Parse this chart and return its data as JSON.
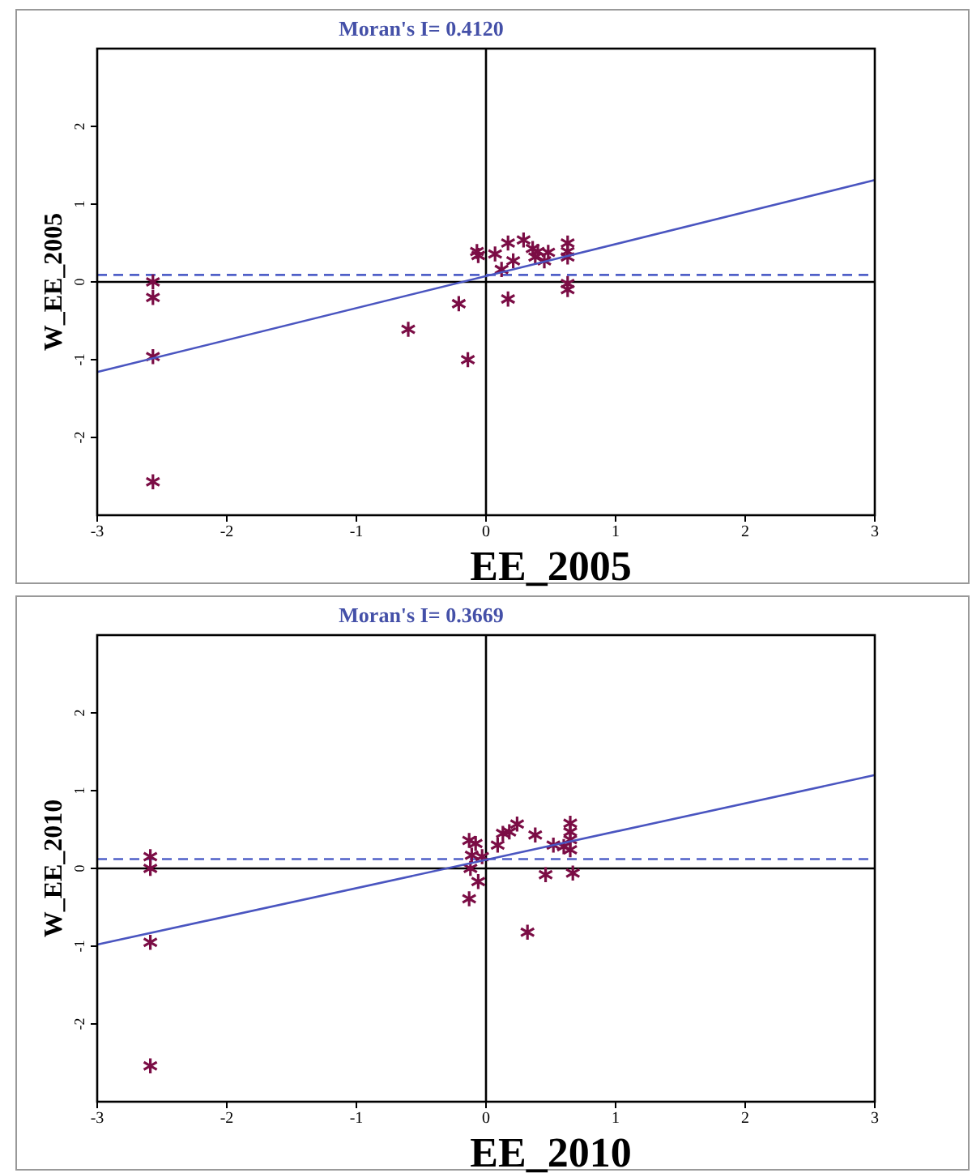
{
  "chart_data": [
    {
      "type": "scatter",
      "title": "Moran's I= 0.4120",
      "xlabel": "EE_2005",
      "ylabel": "W_EE_2005",
      "xlim": [
        -3,
        3
      ],
      "xticks": [
        -3,
        -2,
        -1,
        0,
        1,
        2,
        3
      ],
      "ylim": [
        -3,
        3
      ],
      "yticks": [
        -2,
        -1,
        0,
        1,
        2
      ],
      "grid": false,
      "ref_lines": [
        {
          "axis": "x",
          "value": 0,
          "color": "#000000",
          "line_style": "solid"
        },
        {
          "axis": "y",
          "value": 0,
          "color": "#000000",
          "line_style": "solid"
        },
        {
          "axis": "y",
          "value": 0.09,
          "color": "#5060c8",
          "line_style": "dashed"
        }
      ],
      "series": [
        {
          "marker": "cross",
          "color": "#7b0d45",
          "x": [
            -2.57,
            -2.57,
            -2.57,
            -2.57,
            -0.6,
            -0.21,
            -0.14,
            0.17,
            -0.07,
            -0.06,
            0.07,
            0.12,
            0.17,
            0.21,
            0.29,
            0.36,
            0.4,
            0.38,
            0.45,
            0.48,
            0.63,
            0.63,
            0.63,
            0.63,
            0.63
          ],
          "values": [
            0,
            -0.2,
            -0.96,
            -2.57,
            -0.61,
            -0.28,
            -1.0,
            -0.22,
            0.39,
            0.34,
            0.36,
            0.16,
            0.5,
            0.27,
            0.54,
            0.43,
            0.39,
            0.32,
            0.27,
            0.38,
            0.5,
            0.39,
            0.32,
            -0.02,
            -0.1
          ]
        },
        {
          "type": "line",
          "color": "#4a55c0",
          "x": [
            -3,
            3
          ],
          "values": [
            -1.16,
            1.31
          ]
        }
      ]
    },
    {
      "type": "scatter",
      "title": "Moran's I= 0.3669",
      "xlabel": "EE_2010",
      "ylabel": "W_EE_2010",
      "xlim": [
        -3,
        3
      ],
      "xticks": [
        -3,
        -2,
        -1,
        0,
        1,
        2,
        3
      ],
      "ylim": [
        -3,
        3
      ],
      "yticks": [
        -2,
        -1,
        0,
        1,
        2
      ],
      "grid": false,
      "ref_lines": [
        {
          "axis": "x",
          "value": 0,
          "color": "#000000",
          "line_style": "solid"
        },
        {
          "axis": "y",
          "value": 0,
          "color": "#000000",
          "line_style": "solid"
        },
        {
          "axis": "y",
          "value": 0.12,
          "color": "#5060c8",
          "line_style": "dashed"
        }
      ],
      "series": [
        {
          "marker": "cross",
          "color": "#7b0d45",
          "x": [
            -2.59,
            -2.59,
            -2.59,
            -2.59,
            -0.13,
            -0.08,
            -0.11,
            -0.03,
            -0.12,
            -0.06,
            -0.13,
            0.09,
            0.13,
            0.18,
            0.24,
            0.38,
            0.32,
            0.46,
            0.52,
            0.6,
            0.65,
            0.65,
            0.65,
            0.65,
            0.67
          ],
          "values": [
            0.15,
            0,
            -0.95,
            -2.54,
            0.36,
            0.32,
            0.17,
            0.15,
            0,
            -0.17,
            -0.39,
            0.3,
            0.45,
            0.47,
            0.57,
            0.43,
            -0.82,
            -0.08,
            0.3,
            0.28,
            0.58,
            0.47,
            0.37,
            0.24,
            -0.06
          ]
        },
        {
          "type": "line",
          "color": "#4a55c0",
          "x": [
            -3,
            3
          ],
          "values": [
            -0.98,
            1.2
          ]
        }
      ]
    }
  ]
}
